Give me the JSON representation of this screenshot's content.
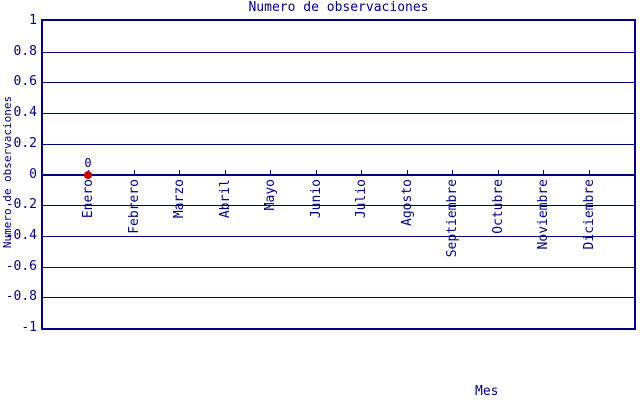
{
  "title": "Numero de observaciones",
  "chart_data": {
    "type": "scatter",
    "title": "Numero de observaciones",
    "xlabel": "Mes",
    "ylabel": "Numero de observaciones",
    "categories": [
      "Enero",
      "Febrero",
      "Marzo",
      "Abril",
      "Mayo",
      "Junio",
      "Julio",
      "Agosto",
      "Septiembre",
      "Octubre",
      "Noviembre",
      "Diciembre"
    ],
    "values": [
      0,
      null,
      null,
      null,
      null,
      null,
      null,
      null,
      null,
      null,
      null,
      null
    ],
    "point_labels": [
      "0",
      null,
      null,
      null,
      null,
      null,
      null,
      null,
      null,
      null,
      null,
      null
    ],
    "ylim": [
      -1,
      1
    ],
    "ytick_step": 0.2,
    "y_tick_labels": [
      "1",
      "0.8",
      "0.6",
      "0.4",
      "0.2",
      "0",
      "-0.2",
      "-0.4",
      "-0.6",
      "-0.8",
      "-1"
    ],
    "grid": true,
    "legend_position": "none",
    "x_axis_at_zero": true,
    "colors": {
      "axis": "#000080",
      "text": "#000080",
      "point": "#cc0000",
      "background": "#ffffff"
    }
  }
}
